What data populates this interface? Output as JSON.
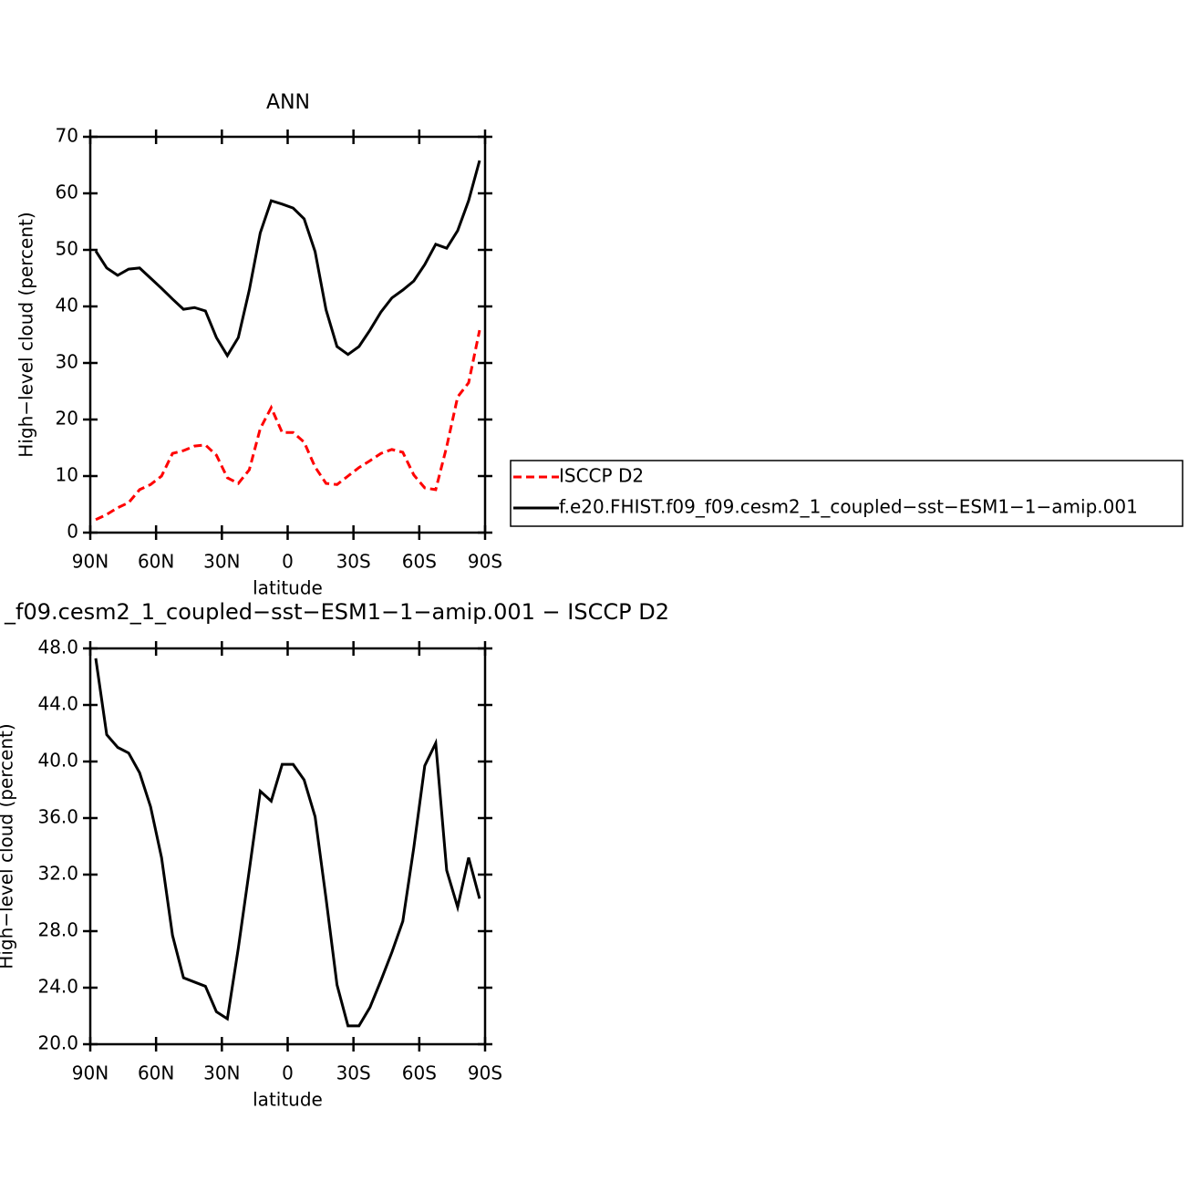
{
  "chart_data": [
    {
      "type": "line",
      "title": "ANN",
      "xlabel": "latitude",
      "ylabel": "High−level cloud (percent)",
      "x": [
        87.5,
        82.5,
        77.5,
        72.5,
        67.5,
        62.5,
        57.5,
        52.5,
        47.5,
        42.5,
        37.5,
        32.5,
        27.5,
        22.5,
        17.5,
        12.5,
        7.5,
        2.5,
        -2.5,
        -7.5,
        -12.5,
        -17.5,
        -22.5,
        -27.5,
        -32.5,
        -37.5,
        -42.5,
        -47.5,
        -52.5,
        -57.5,
        -62.5,
        -67.5,
        -72.5,
        -77.5,
        -82.5,
        -87.5
      ],
      "xlim": [
        90,
        -90
      ],
      "xticks": [
        {
          "value": 90,
          "label": "90N"
        },
        {
          "value": 60,
          "label": "60N"
        },
        {
          "value": 30,
          "label": "30N"
        },
        0,
        {
          "value": -30,
          "label": "30S"
        },
        {
          "value": -60,
          "label": "60S"
        },
        {
          "value": -90,
          "label": "90S"
        }
      ],
      "ylim": [
        0,
        70
      ],
      "yticks": [
        0,
        10,
        20,
        30,
        40,
        50,
        60,
        70
      ],
      "legend": "right",
      "series": [
        {
          "name": "ISCCP D2",
          "color": "#ff0000",
          "line_style": "dashed",
          "values": [
            2.3,
            3.2,
            4.4,
            5.3,
            7.6,
            8.5,
            10,
            14,
            14.5,
            15.3,
            15.5,
            13.7,
            9.7,
            8.7,
            11.1,
            18.4,
            22.1,
            17.7,
            17.7,
            16,
            11.6,
            8.7,
            8.5,
            10,
            11.5,
            12.7,
            14,
            14.7,
            14.2,
            10.2,
            7.9,
            7.6,
            15.2,
            24,
            26.5,
            35.8
          ]
        },
        {
          "name": "f.e20.FHIST.f09_f09.cesm2_1_coupled−sst−ESM1−1−amip.001",
          "color": "#000000",
          "line_style": "solid",
          "values": [
            49.8,
            46.8,
            45.5,
            46.6,
            46.8,
            45,
            43.2,
            41.3,
            39.5,
            39.8,
            39.2,
            34.5,
            31.3,
            34.5,
            42.9,
            53,
            58.7,
            58.1,
            57.4,
            55.5,
            49.7,
            39.4,
            32.9,
            31.5,
            32.9,
            35.8,
            39,
            41.5,
            42.9,
            44.5,
            47.4,
            51,
            50.3,
            53.4,
            58.7,
            65.8
          ]
        }
      ]
    },
    {
      "type": "line",
      "title": "_f09.cesm2_1_coupled−sst−ESM1−1−amip.001 − ISCCP D2",
      "xlabel": "latitude",
      "ylabel": "High−level cloud (percent)",
      "x": [
        87.5,
        82.5,
        77.5,
        72.5,
        67.5,
        62.5,
        57.5,
        52.5,
        47.5,
        42.5,
        37.5,
        32.5,
        27.5,
        22.5,
        17.5,
        12.5,
        7.5,
        2.5,
        -2.5,
        -7.5,
        -12.5,
        -17.5,
        -22.5,
        -27.5,
        -32.5,
        -37.5,
        -42.5,
        -47.5,
        -52.5,
        -57.5,
        -62.5,
        -67.5,
        -72.5,
        -77.5,
        -82.5,
        -87.5
      ],
      "xlim": [
        90,
        -90
      ],
      "xticks": [
        {
          "value": 90,
          "label": "90N"
        },
        {
          "value": 60,
          "label": "60N"
        },
        {
          "value": 30,
          "label": "30N"
        },
        0,
        {
          "value": -30,
          "label": "30S"
        },
        {
          "value": -60,
          "label": "60S"
        },
        {
          "value": -90,
          "label": "90S"
        }
      ],
      "ylim": [
        20,
        48
      ],
      "yticks": [
        {
          "value": 20,
          "label": "20.0"
        },
        {
          "value": 24,
          "label": "24.0"
        },
        {
          "value": 28,
          "label": "28.0"
        },
        {
          "value": 32,
          "label": "32.0"
        },
        {
          "value": 36,
          "label": "36.0"
        },
        {
          "value": 40,
          "label": "40.0"
        },
        {
          "value": 44,
          "label": "44.0"
        },
        {
          "value": 48,
          "label": "48.0"
        }
      ],
      "series": [
        {
          "color": "#000000",
          "line_style": "solid",
          "values": [
            47.3,
            41.9,
            41,
            40.6,
            39.2,
            36.8,
            33.2,
            27.7,
            24.7,
            24.4,
            24.1,
            22.3,
            21.8,
            26.8,
            32.3,
            37.9,
            37.2,
            39.8,
            39.8,
            38.7,
            36.1,
            30.3,
            24.2,
            21.3,
            21.3,
            22.6,
            24.5,
            26.5,
            28.7,
            33.9,
            39.7,
            41.3,
            32.3,
            29.7,
            33.2,
            30.3
          ]
        }
      ]
    }
  ]
}
